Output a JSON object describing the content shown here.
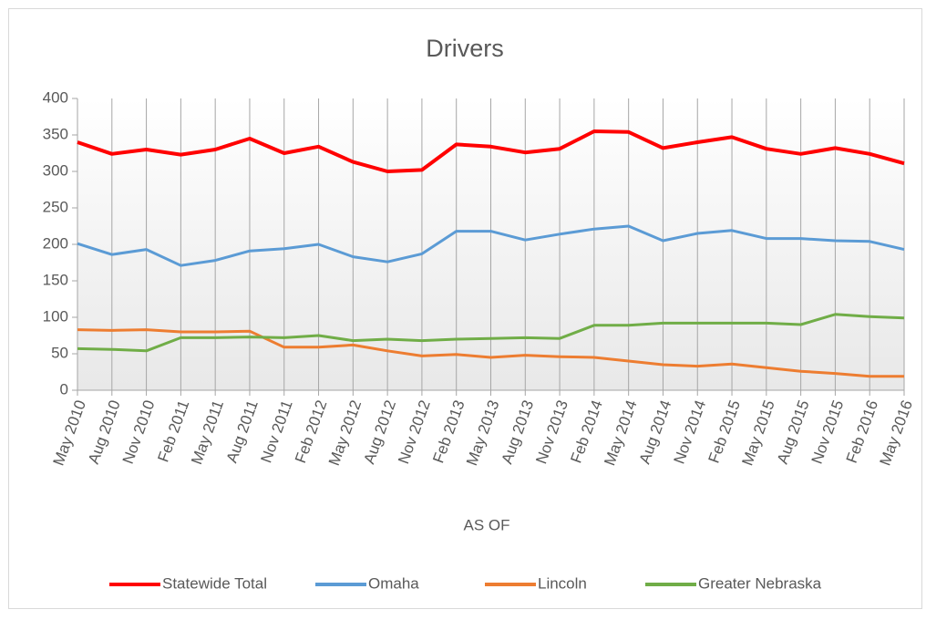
{
  "chart_data": {
    "type": "line",
    "title": "Drivers",
    "x_label": "AS OF",
    "categories": [
      "May 2010",
      "Aug 2010",
      "Nov 2010",
      "Feb 2011",
      "May 2011",
      "Aug 2011",
      "Nov 2011",
      "Feb 2012",
      "May 2012",
      "Aug 2012",
      "Nov 2012",
      "Feb 2013",
      "May 2013",
      "Aug 2013",
      "Nov 2013",
      "Feb 2014",
      "May 2014",
      "Aug 2014",
      "Nov 2014",
      "Feb 2015",
      "May 2015",
      "Aug 2015",
      "Nov 2015",
      "Feb 2016",
      "May 2016"
    ],
    "series": [
      {
        "name": "Statewide Total",
        "color": "#ff0000",
        "values": [
          340,
          324,
          330,
          323,
          330,
          345,
          325,
          334,
          313,
          300,
          302,
          337,
          334,
          326,
          331,
          355,
          354,
          332,
          340,
          347,
          331,
          324,
          332,
          324,
          311
        ]
      },
      {
        "name": "Omaha",
        "color": "#5b9bd5",
        "values": [
          201,
          186,
          193,
          171,
          178,
          191,
          194,
          200,
          183,
          176,
          187,
          218,
          218,
          206,
          214,
          221,
          225,
          205,
          215,
          219,
          208,
          208,
          205,
          204,
          193
        ]
      },
      {
        "name": "Lincoln",
        "color": "#ed7d31",
        "values": [
          83,
          82,
          83,
          80,
          80,
          81,
          59,
          59,
          62,
          54,
          47,
          49,
          45,
          48,
          46,
          45,
          40,
          35,
          33,
          36,
          31,
          26,
          23,
          19,
          19
        ]
      },
      {
        "name": "Greater Nebraska",
        "color": "#70ad47",
        "values": [
          57,
          56,
          54,
          72,
          72,
          73,
          72,
          75,
          68,
          70,
          68,
          70,
          71,
          72,
          71,
          89,
          89,
          92,
          92,
          92,
          92,
          90,
          104,
          101,
          99
        ]
      }
    ],
    "ylim": [
      0,
      400
    ],
    "yticks": [
      0,
      50,
      100,
      150,
      200,
      250,
      300,
      350,
      400
    ],
    "xgrid": true,
    "legend": "bottom"
  }
}
